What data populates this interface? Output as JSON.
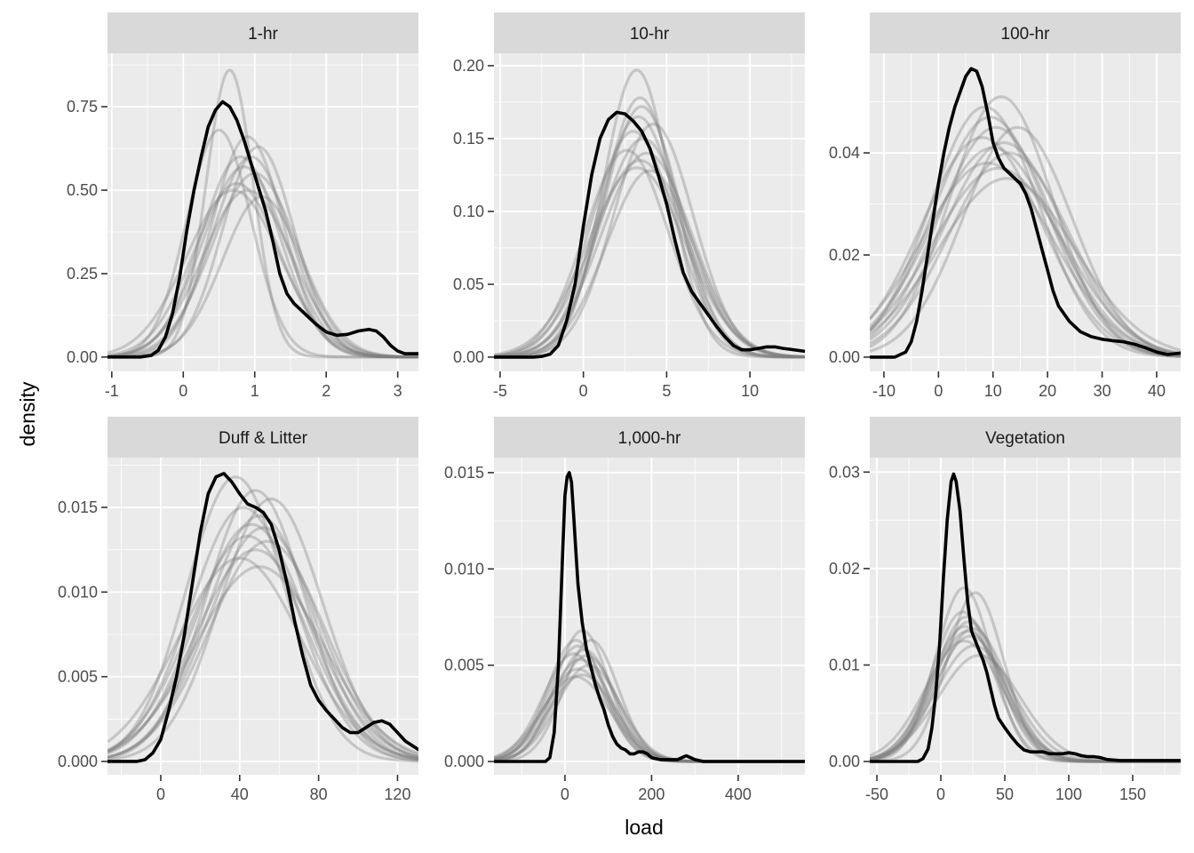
{
  "chart_data": {
    "type": "line",
    "subtype": "faceted density plot",
    "xlabel": "load",
    "ylabel": "density",
    "grid": true,
    "legend": "none",
    "colors": {
      "panel_bg": "#ebebeb",
      "strip_bg": "#d9d9d9",
      "grid": "#ffffff",
      "observed": "#000000",
      "simulated": "#7f7f7f"
    },
    "panels": [
      {
        "title": "1-hr",
        "xlim": [
          -1.06,
          3.29
        ],
        "ylim": [
          -0.043,
          0.91
        ],
        "x_ticks": [
          -1,
          0,
          1,
          2,
          3
        ],
        "x_tick_labels": [
          "-1",
          "0",
          "1",
          "2",
          "3"
        ],
        "y_ticks": [
          0,
          0.25,
          0.5,
          0.75
        ],
        "y_tick_labels": [
          "0.00",
          "0.25",
          "0.50",
          "0.75"
        ],
        "observed": {
          "name": "observed",
          "x": [
            -1.06,
            -0.6,
            -0.45,
            -0.35,
            -0.25,
            -0.15,
            -0.05,
            0.05,
            0.15,
            0.25,
            0.35,
            0.45,
            0.55,
            0.65,
            0.75,
            0.85,
            0.95,
            1.05,
            1.15,
            1.25,
            1.35,
            1.45,
            1.55,
            1.7,
            1.85,
            2.0,
            2.15,
            2.3,
            2.45,
            2.6,
            2.7,
            2.8,
            2.9,
            3.0,
            3.1,
            3.29
          ],
          "y": [
            0,
            0,
            0.005,
            0.02,
            0.06,
            0.13,
            0.24,
            0.38,
            0.5,
            0.6,
            0.69,
            0.74,
            0.765,
            0.75,
            0.71,
            0.65,
            0.58,
            0.51,
            0.44,
            0.35,
            0.25,
            0.19,
            0.16,
            0.13,
            0.1,
            0.075,
            0.065,
            0.068,
            0.078,
            0.083,
            0.078,
            0.06,
            0.035,
            0.018,
            0.01,
            0.01
          ]
        },
        "simulated": [
          {
            "mu": 0.65,
            "sd": 0.33,
            "peak": 0.86
          },
          {
            "mu": 0.5,
            "sd": 0.45,
            "peak": 0.68
          },
          {
            "mu": 0.9,
            "sd": 0.5,
            "peak": 0.66
          },
          {
            "mu": 1.05,
            "sd": 0.5,
            "peak": 0.63
          },
          {
            "mu": 0.8,
            "sd": 0.55,
            "peak": 0.6
          },
          {
            "mu": 0.95,
            "sd": 0.55,
            "peak": 0.6
          },
          {
            "mu": 0.85,
            "sd": 0.58,
            "peak": 0.57
          },
          {
            "mu": 1.0,
            "sd": 0.6,
            "peak": 0.55
          },
          {
            "mu": 0.75,
            "sd": 0.6,
            "peak": 0.52
          },
          {
            "mu": 0.9,
            "sd": 0.62,
            "peak": 0.5
          },
          {
            "mu": 1.1,
            "sd": 0.55,
            "peak": 0.48
          },
          {
            "mu": 0.7,
            "sd": 0.65,
            "peak": 0.5
          }
        ]
      },
      {
        "title": "10-hr",
        "xlim": [
          -5.37,
          13.3
        ],
        "ylim": [
          -0.0098,
          0.2085
        ],
        "x_ticks": [
          -5,
          0,
          5,
          10
        ],
        "x_tick_labels": [
          "-5",
          "0",
          "5",
          "10"
        ],
        "y_ticks": [
          0,
          0.05,
          0.1,
          0.15,
          0.2
        ],
        "y_tick_labels": [
          "0.00",
          "0.05",
          "0.10",
          "0.15",
          "0.20"
        ],
        "observed": {
          "name": "observed",
          "x": [
            -5.37,
            -3,
            -2.5,
            -2,
            -1.5,
            -1,
            -0.5,
            0,
            0.5,
            1,
            1.5,
            2,
            2.5,
            3,
            3.5,
            4,
            4.5,
            5,
            5.5,
            6,
            6.5,
            7,
            7.5,
            8,
            8.5,
            9,
            9.5,
            10,
            10.5,
            11,
            11.5,
            12,
            13.3
          ],
          "y": [
            0,
            0,
            0.0005,
            0.002,
            0.008,
            0.025,
            0.05,
            0.09,
            0.125,
            0.15,
            0.163,
            0.168,
            0.167,
            0.162,
            0.155,
            0.143,
            0.125,
            0.105,
            0.08,
            0.058,
            0.045,
            0.037,
            0.029,
            0.021,
            0.014,
            0.008,
            0.005,
            0.005,
            0.006,
            0.007,
            0.007,
            0.006,
            0.004
          ]
        },
        "simulated": [
          {
            "mu": 3.2,
            "sd": 2.0,
            "peak": 0.197
          },
          {
            "mu": 3.4,
            "sd": 2.2,
            "peak": 0.178
          },
          {
            "mu": 3.5,
            "sd": 2.3,
            "peak": 0.172
          },
          {
            "mu": 3.3,
            "sd": 2.4,
            "peak": 0.165
          },
          {
            "mu": 4.2,
            "sd": 2.4,
            "peak": 0.16
          },
          {
            "mu": 3.0,
            "sd": 2.5,
            "peak": 0.155
          },
          {
            "mu": 3.6,
            "sd": 2.6,
            "peak": 0.15
          },
          {
            "mu": 2.6,
            "sd": 2.5,
            "peak": 0.142
          },
          {
            "mu": 3.8,
            "sd": 2.7,
            "peak": 0.14
          },
          {
            "mu": 3.4,
            "sd": 2.8,
            "peak": 0.135
          },
          {
            "mu": 4.0,
            "sd": 2.6,
            "peak": 0.128
          },
          {
            "mu": 3.2,
            "sd": 2.9,
            "peak": 0.13
          }
        ]
      },
      {
        "title": "100-hr",
        "xlim": [
          -12.6,
          44.4
        ],
        "ylim": [
          -0.0028,
          0.0595
        ],
        "x_ticks": [
          -10,
          0,
          10,
          20,
          30,
          40
        ],
        "x_tick_labels": [
          "-10",
          "0",
          "10",
          "20",
          "30",
          "40"
        ],
        "y_ticks": [
          0,
          0.02,
          0.04
        ],
        "y_tick_labels": [
          "0.00",
          "0.02",
          "0.04"
        ],
        "observed": {
          "name": "observed",
          "x": [
            -12.6,
            -8,
            -6,
            -5,
            -4,
            -3,
            -2,
            -1,
            0,
            1,
            2,
            3,
            4,
            5,
            6,
            7,
            8,
            9,
            10,
            11,
            12,
            13,
            14,
            15,
            16,
            17,
            18,
            19,
            20,
            21,
            22,
            24,
            26,
            28,
            30,
            32,
            34,
            36,
            38,
            40,
            42,
            44.4
          ],
          "y": [
            0,
            0,
            0.001,
            0.003,
            0.007,
            0.013,
            0.02,
            0.027,
            0.034,
            0.04,
            0.045,
            0.049,
            0.052,
            0.055,
            0.0565,
            0.056,
            0.053,
            0.048,
            0.042,
            0.039,
            0.037,
            0.036,
            0.035,
            0.034,
            0.032,
            0.029,
            0.025,
            0.021,
            0.017,
            0.013,
            0.01,
            0.007,
            0.005,
            0.004,
            0.0035,
            0.0032,
            0.003,
            0.0025,
            0.0018,
            0.001,
            0.0005,
            0.0008
          ]
        },
        "simulated": [
          {
            "mu": 11.5,
            "sd": 9.5,
            "peak": 0.051
          },
          {
            "mu": 8.5,
            "sd": 10,
            "peak": 0.049
          },
          {
            "mu": 9.5,
            "sd": 10.5,
            "peak": 0.047
          },
          {
            "mu": 10.5,
            "sd": 10.5,
            "peak": 0.045
          },
          {
            "mu": 14.5,
            "sd": 10,
            "peak": 0.045
          },
          {
            "mu": 8.0,
            "sd": 11,
            "peak": 0.043
          },
          {
            "mu": 12.0,
            "sd": 11,
            "peak": 0.042
          },
          {
            "mu": 10.0,
            "sd": 11.5,
            "peak": 0.041
          },
          {
            "mu": 13.0,
            "sd": 11,
            "peak": 0.04
          },
          {
            "mu": 9.0,
            "sd": 12,
            "peak": 0.038
          },
          {
            "mu": 11.0,
            "sd": 12,
            "peak": 0.037
          },
          {
            "mu": 12.5,
            "sd": 12.5,
            "peak": 0.035
          }
        ]
      },
      {
        "title": "Duff & Litter",
        "xlim": [
          -27,
          130.6
        ],
        "ylim": [
          -0.00079,
          0.01794
        ],
        "x_ticks": [
          0,
          40,
          80,
          120
        ],
        "x_tick_labels": [
          "0",
          "40",
          "80",
          "120"
        ],
        "y_ticks": [
          0,
          0.005,
          0.01,
          0.015
        ],
        "y_tick_labels": [
          "0.000",
          "0.005",
          "0.010",
          "0.015"
        ],
        "observed": {
          "name": "observed",
          "x": [
            -27,
            -12,
            -8,
            -4,
            0,
            4,
            8,
            12,
            16,
            20,
            24,
            28,
            32,
            36,
            40,
            44,
            48,
            52,
            56,
            60,
            64,
            68,
            72,
            76,
            80,
            84,
            88,
            92,
            96,
            100,
            104,
            108,
            112,
            116,
            120,
            124,
            128,
            130.6
          ],
          "y": [
            0,
            0,
            0.0001,
            0.0005,
            0.0013,
            0.003,
            0.005,
            0.0075,
            0.0105,
            0.0135,
            0.0158,
            0.0168,
            0.017,
            0.0165,
            0.0158,
            0.0152,
            0.015,
            0.0147,
            0.014,
            0.0125,
            0.0105,
            0.0082,
            0.0062,
            0.0045,
            0.0036,
            0.003,
            0.0025,
            0.002,
            0.0017,
            0.0017,
            0.002,
            0.0023,
            0.0024,
            0.0022,
            0.0017,
            0.0012,
            0.0009,
            0.0007
          ]
        },
        "simulated": [
          {
            "mu": 38,
            "sd": 25,
            "peak": 0.0168
          },
          {
            "mu": 48,
            "sd": 25,
            "peak": 0.016
          },
          {
            "mu": 56,
            "sd": 26,
            "peak": 0.0155
          },
          {
            "mu": 42,
            "sd": 27,
            "peak": 0.015
          },
          {
            "mu": 50,
            "sd": 27,
            "peak": 0.0145
          },
          {
            "mu": 46,
            "sd": 28,
            "peak": 0.014
          },
          {
            "mu": 52,
            "sd": 28,
            "peak": 0.0138
          },
          {
            "mu": 44,
            "sd": 29,
            "peak": 0.0133
          },
          {
            "mu": 54,
            "sd": 29,
            "peak": 0.013
          },
          {
            "mu": 48,
            "sd": 30,
            "peak": 0.0125
          },
          {
            "mu": 40,
            "sd": 31,
            "peak": 0.012
          },
          {
            "mu": 50,
            "sd": 32,
            "peak": 0.0115
          }
        ]
      },
      {
        "title": "1,000-hr",
        "xlim": [
          -164,
          554
        ],
        "ylim": [
          -0.00069,
          0.01578
        ],
        "x_ticks": [
          0,
          200,
          400
        ],
        "x_tick_labels": [
          "0",
          "200",
          "400"
        ],
        "y_ticks": [
          0,
          0.005,
          0.01,
          0.015
        ],
        "y_tick_labels": [
          "0.000",
          "0.005",
          "0.010",
          "0.015"
        ],
        "observed": {
          "name": "observed",
          "x": [
            -164,
            -45,
            -35,
            -25,
            -15,
            -5,
            0,
            5,
            10,
            15,
            20,
            25,
            30,
            40,
            50,
            60,
            70,
            80,
            90,
            100,
            110,
            120,
            130,
            140,
            150,
            160,
            170,
            180,
            190,
            200,
            220,
            240,
            260,
            270,
            280,
            290,
            300,
            320,
            554
          ],
          "y": [
            0,
            0,
            0.0002,
            0.0015,
            0.005,
            0.011,
            0.0138,
            0.0148,
            0.015,
            0.0145,
            0.0128,
            0.011,
            0.0092,
            0.0072,
            0.0058,
            0.0049,
            0.004,
            0.0033,
            0.0027,
            0.0019,
            0.0013,
            0.0009,
            0.0007,
            0.0006,
            0.0004,
            0.0004,
            0.0005,
            0.0005,
            0.0004,
            0.0002,
            0.0001,
            0.0001,
            0.0001,
            0.0002,
            0.0003,
            0.0002,
            0.0001,
            0,
            0
          ]
        },
        "simulated": [
          {
            "mu": 40,
            "sd": 62,
            "peak": 0.0068
          },
          {
            "mu": 25,
            "sd": 65,
            "peak": 0.0063
          },
          {
            "mu": 60,
            "sd": 63,
            "peak": 0.0063
          },
          {
            "mu": 30,
            "sd": 67,
            "peak": 0.006
          },
          {
            "mu": 45,
            "sd": 68,
            "peak": 0.0058
          },
          {
            "mu": 20,
            "sd": 70,
            "peak": 0.0056
          },
          {
            "mu": 50,
            "sd": 70,
            "peak": 0.0055
          },
          {
            "mu": 35,
            "sd": 72,
            "peak": 0.0053
          },
          {
            "mu": 55,
            "sd": 72,
            "peak": 0.005
          },
          {
            "mu": 30,
            "sd": 75,
            "peak": 0.0048
          },
          {
            "mu": 40,
            "sd": 76,
            "peak": 0.0045
          },
          {
            "mu": 25,
            "sd": 78,
            "peak": 0.0044
          }
        ]
      },
      {
        "title": "Vegetation",
        "xlim": [
          -55.6,
          187.5
        ],
        "ylim": [
          -0.00138,
          0.0315
        ],
        "x_ticks": [
          -50,
          0,
          50,
          100,
          150
        ],
        "x_tick_labels": [
          "-50",
          "0",
          "50",
          "100",
          "150"
        ],
        "y_ticks": [
          0,
          0.01,
          0.02,
          0.03
        ],
        "y_tick_labels": [
          "0.00",
          "0.01",
          "0.02",
          "0.03"
        ],
        "observed": {
          "name": "observed",
          "x": [
            -55.6,
            -18,
            -14,
            -10,
            -7,
            -4,
            -1,
            2,
            5,
            8,
            10,
            12,
            15,
            18,
            21,
            24,
            27,
            30,
            33,
            36,
            39,
            42,
            45,
            50,
            55,
            60,
            65,
            70,
            75,
            80,
            85,
            90,
            95,
            100,
            105,
            110,
            115,
            120,
            125,
            130,
            140,
            187.5
          ],
          "y": [
            0,
            0,
            0.0003,
            0.0013,
            0.0035,
            0.007,
            0.012,
            0.019,
            0.025,
            0.029,
            0.0298,
            0.029,
            0.026,
            0.021,
            0.0165,
            0.0135,
            0.0125,
            0.0115,
            0.0105,
            0.0092,
            0.0075,
            0.0058,
            0.0045,
            0.0035,
            0.0026,
            0.0018,
            0.0012,
            0.001,
            0.001,
            0.001,
            0.0008,
            0.0008,
            0.0008,
            0.0009,
            0.0008,
            0.0006,
            0.0005,
            0.0005,
            0.0004,
            0.0002,
            0.0001,
            0.0001
          ]
        },
        "simulated": [
          {
            "mu": 18,
            "sd": 22,
            "peak": 0.018
          },
          {
            "mu": 27,
            "sd": 22,
            "peak": 0.0175
          },
          {
            "mu": 17,
            "sd": 24,
            "peak": 0.0155
          },
          {
            "mu": 20,
            "sd": 25,
            "peak": 0.015
          },
          {
            "mu": 22,
            "sd": 26,
            "peak": 0.0145
          },
          {
            "mu": 19,
            "sd": 27,
            "peak": 0.014
          },
          {
            "mu": 25,
            "sd": 27,
            "peak": 0.0138
          },
          {
            "mu": 21,
            "sd": 28,
            "peak": 0.0135
          },
          {
            "mu": 23,
            "sd": 28,
            "peak": 0.013
          },
          {
            "mu": 18,
            "sd": 30,
            "peak": 0.0125
          },
          {
            "mu": 26,
            "sd": 30,
            "peak": 0.012
          },
          {
            "mu": 30,
            "sd": 32,
            "peak": 0.011
          }
        ]
      }
    ]
  }
}
